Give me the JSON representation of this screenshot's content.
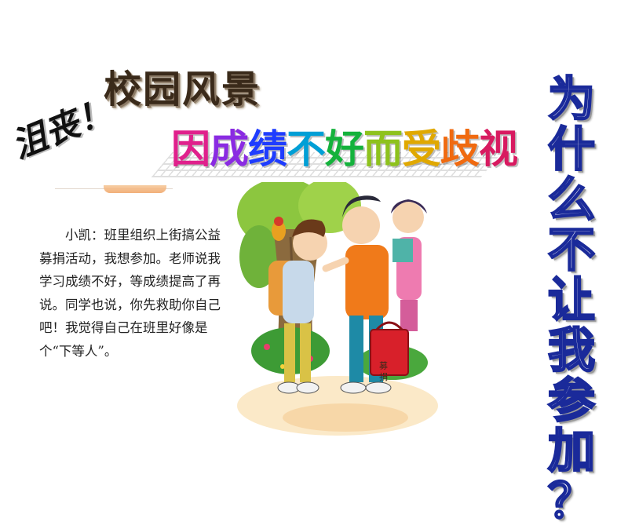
{
  "title": "校园风景",
  "exclaim": "沮丧！",
  "headline": [
    {
      "char": "因",
      "color": "#e0208c"
    },
    {
      "char": "成",
      "color": "#8a2be2"
    },
    {
      "char": "绩",
      "color": "#1e3cff"
    },
    {
      "char": "不",
      "color": "#009fd6"
    },
    {
      "char": "好",
      "color": "#14b23c"
    },
    {
      "char": "而",
      "color": "#8ec21d"
    },
    {
      "char": "受",
      "color": "#e0a800"
    },
    {
      "char": "歧",
      "color": "#f06a10"
    },
    {
      "char": "视",
      "color": "#d81a60"
    }
  ],
  "question": [
    "为",
    "什",
    "么",
    "不",
    "让",
    "我",
    "参",
    "加",
    "？"
  ],
  "story": {
    "paragraph": "小凯：班里组织上街搞公益募捐活动，我想参加。老师说我学习成绩不好，等成绩提高了再说。同学也说，你先救助你自己吧！我觉得自己在班里好像是个“下等人”。",
    "box_label": "募 捐"
  },
  "colors": {
    "question_stroke": "#1a2a9a",
    "title": "#3a2a1a"
  }
}
